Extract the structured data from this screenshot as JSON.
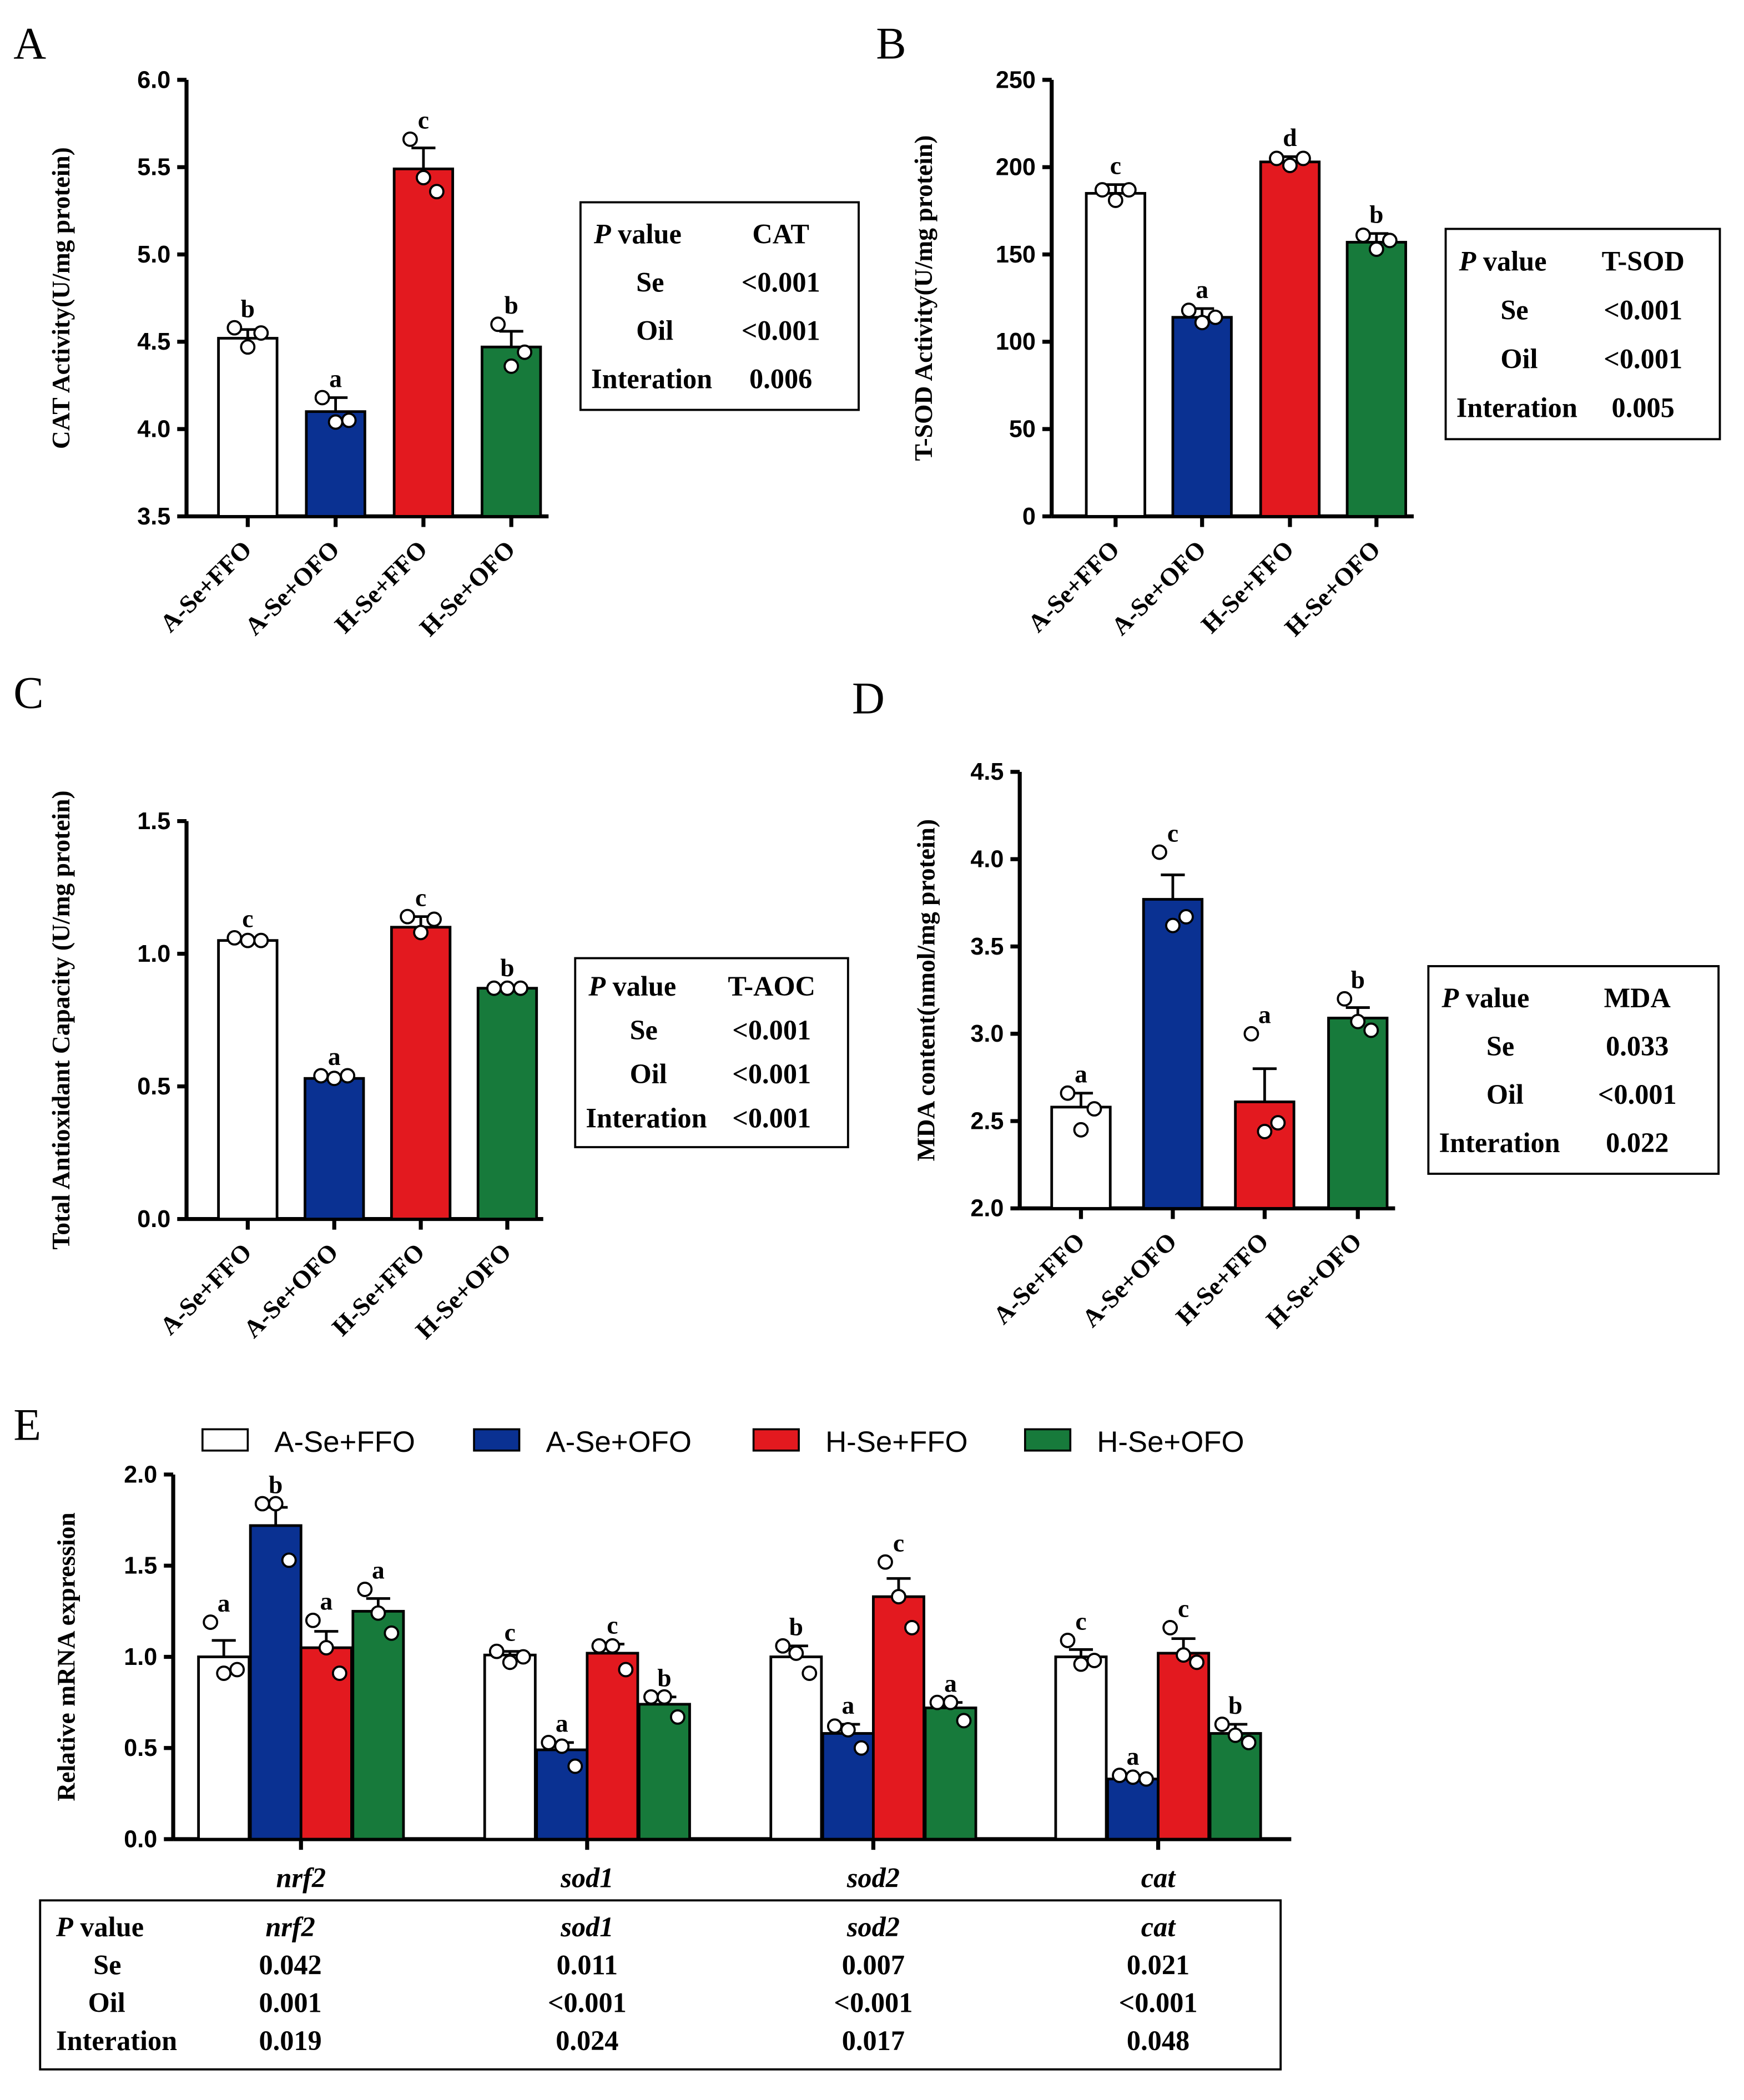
{
  "colors": {
    "A-Se+FFO": "#ffffff",
    "A-Se+OFO": "#0a3192",
    "H-Se+FFO": "#e3191f",
    "H-Se+OFO": "#177a3b"
  },
  "chart_data": [
    {
      "panel": "A",
      "type": "bar",
      "ylabel": "CAT Activity(U/mg protein)",
      "ylim": [
        3.5,
        6.0
      ],
      "yticks": [
        "3.5",
        "4.0",
        "4.5",
        "5.0",
        "5.5",
        "6.0"
      ],
      "categories": [
        "A-Se+FFO",
        "A-Se+OFO",
        "H-Se+FFO",
        "H-Se+OFO"
      ],
      "values": [
        4.52,
        4.1,
        5.49,
        4.47
      ],
      "errors": [
        0.05,
        0.08,
        0.12,
        0.09
      ],
      "letters": [
        "b",
        "a",
        "c",
        "b"
      ],
      "points": [
        [
          4.58,
          4.47,
          4.55
        ],
        [
          4.18,
          4.04,
          4.05
        ],
        [
          5.66,
          5.44,
          5.36
        ],
        [
          4.6,
          4.36,
          4.44
        ]
      ],
      "table": {
        "header": [
          "P value",
          "CAT"
        ],
        "rows": [
          [
            "Se",
            "<0.001"
          ],
          [
            "Oil",
            "<0.001"
          ],
          [
            "Interation",
            "0.006"
          ]
        ]
      }
    },
    {
      "panel": "B",
      "type": "bar",
      "ylabel": "T-SOD Activity(U/mg protein)",
      "ylim": [
        0,
        250
      ],
      "yticks": [
        "0",
        "50",
        "100",
        "150",
        "200",
        "250"
      ],
      "categories": [
        "A-Se+FFO",
        "A-Se+OFO",
        "H-Se+FFO",
        "H-Se+OFO"
      ],
      "values": [
        185,
        114,
        203,
        157
      ],
      "errors": [
        5,
        5,
        3,
        5
      ],
      "letters": [
        "c",
        "a",
        "d",
        "b"
      ],
      "points": [
        [
          187,
          181,
          187
        ],
        [
          118,
          111,
          114
        ],
        [
          205,
          201,
          205
        ],
        [
          161,
          153,
          158
        ]
      ],
      "table": {
        "header": [
          "P value",
          "T-SOD"
        ],
        "rows": [
          [
            "Se",
            "<0.001"
          ],
          [
            "Oil",
            "<0.001"
          ],
          [
            "Interation",
            "0.005"
          ]
        ]
      }
    },
    {
      "panel": "C",
      "type": "bar",
      "ylabel": "Total Antioxidant Capacity (U/mg protein)",
      "ylim": [
        0,
        1.5
      ],
      "yticks": [
        "0.0",
        "0.5",
        "1.0",
        "1.5"
      ],
      "categories": [
        "A-Se+FFO",
        "A-Se+OFO",
        "H-Se+FFO",
        "H-Se+OFO"
      ],
      "values": [
        1.05,
        0.53,
        1.1,
        0.87
      ],
      "errors": [
        0.01,
        0.01,
        0.04,
        0.005
      ],
      "letters": [
        "c",
        "a",
        "c",
        "b"
      ],
      "points": [
        [
          1.06,
          1.05,
          1.05
        ],
        [
          0.54,
          0.53,
          0.54
        ],
        [
          1.14,
          1.08,
          1.13
        ],
        [
          0.87,
          0.87,
          0.87
        ]
      ],
      "table": {
        "header": [
          "P value",
          "T-AOC"
        ],
        "rows": [
          [
            "Se",
            "<0.001"
          ],
          [
            "Oil",
            "<0.001"
          ],
          [
            "Interation",
            "<0.001"
          ]
        ]
      }
    },
    {
      "panel": "D",
      "type": "bar",
      "ylabel": "MDA content(nmol/mg protein)",
      "ylim": [
        2.0,
        4.5
      ],
      "yticks": [
        "2.0",
        "2.5",
        "3.0",
        "3.5",
        "4.0",
        "4.5"
      ],
      "categories": [
        "A-Se+FFO",
        "A-Se+OFO",
        "H-Se+FFO",
        "H-Se+OFO"
      ],
      "values": [
        2.58,
        3.77,
        2.61,
        3.09
      ],
      "errors": [
        0.08,
        0.14,
        0.19,
        0.06
      ],
      "letters": [
        "a",
        "c",
        "a",
        "b"
      ],
      "points": [
        [
          2.66,
          2.45,
          2.57
        ],
        [
          4.04,
          3.62,
          3.67
        ],
        [
          3.0,
          2.44,
          2.49
        ],
        [
          3.2,
          3.07,
          3.02
        ]
      ],
      "table": {
        "header": [
          "P value",
          "MDA"
        ],
        "rows": [
          [
            "Se",
            "0.033"
          ],
          [
            "Oil",
            "<0.001"
          ],
          [
            "Interation",
            "0.022"
          ]
        ]
      }
    },
    {
      "panel": "E",
      "type": "bar",
      "ylabel": "Relative mRNA expression",
      "ylim": [
        0,
        2.0
      ],
      "yticks": [
        "0.0",
        "0.5",
        "1.0",
        "1.5",
        "2.0"
      ],
      "legend": [
        "A-Se+FFO",
        "A-Se+OFO",
        "H-Se+FFO",
        "H-Se+OFO"
      ],
      "categories": [
        "nrf2",
        "sod1",
        "sod2",
        "cat"
      ],
      "series": [
        {
          "name": "A-Se+FFO",
          "values": [
            1.0,
            1.01,
            1.0,
            1.0
          ],
          "errors": [
            0.09,
            0.02,
            0.06,
            0.04
          ],
          "letters": [
            "a",
            "c",
            "b",
            "c"
          ],
          "points": [
            [
              1.19,
              0.91,
              0.93
            ],
            [
              1.03,
              0.97,
              1.0
            ],
            [
              1.06,
              1.02,
              0.91
            ],
            [
              1.09,
              0.96,
              0.98
            ]
          ]
        },
        {
          "name": "A-Se+OFO",
          "values": [
            1.72,
            0.49,
            0.58,
            0.33
          ],
          "errors": [
            0.1,
            0.04,
            0.05,
            0.02
          ],
          "letters": [
            "b",
            "a",
            "a",
            "a"
          ],
          "points": [
            [
              1.84,
              1.84,
              1.53
            ],
            [
              0.53,
              0.51,
              0.4
            ],
            [
              0.62,
              0.6,
              0.5
            ],
            [
              0.35,
              0.34,
              0.33
            ]
          ]
        },
        {
          "name": "H-Se+FFO",
          "values": [
            1.05,
            1.02,
            1.33,
            1.02
          ],
          "errors": [
            0.09,
            0.05,
            0.1,
            0.08
          ],
          "letters": [
            "a",
            "c",
            "c",
            "c"
          ],
          "points": [
            [
              1.2,
              1.05,
              0.91
            ],
            [
              1.06,
              1.06,
              0.93
            ],
            [
              1.52,
              1.33,
              1.16
            ],
            [
              1.16,
              1.01,
              0.97
            ]
          ]
        },
        {
          "name": "H-Se+OFO",
          "values": [
            1.25,
            0.74,
            0.72,
            0.58
          ],
          "errors": [
            0.07,
            0.04,
            0.03,
            0.05
          ],
          "letters": [
            "a",
            "b",
            "a",
            "b"
          ],
          "points": [
            [
              1.37,
              1.24,
              1.13
            ],
            [
              0.78,
              0.78,
              0.67
            ],
            [
              0.75,
              0.75,
              0.65
            ],
            [
              0.63,
              0.57,
              0.53
            ]
          ]
        }
      ],
      "table": {
        "header": [
          "P value",
          "nrf2",
          "sod1",
          "sod2",
          "cat"
        ],
        "rows": [
          [
            "Se",
            "0.042",
            "0.011",
            "0.007",
            "0.021"
          ],
          [
            "Oil",
            "0.001",
            "<0.001",
            "<0.001",
            "<0.001"
          ],
          [
            "Interation",
            "0.019",
            "0.024",
            "0.017",
            "0.048"
          ]
        ]
      }
    }
  ]
}
